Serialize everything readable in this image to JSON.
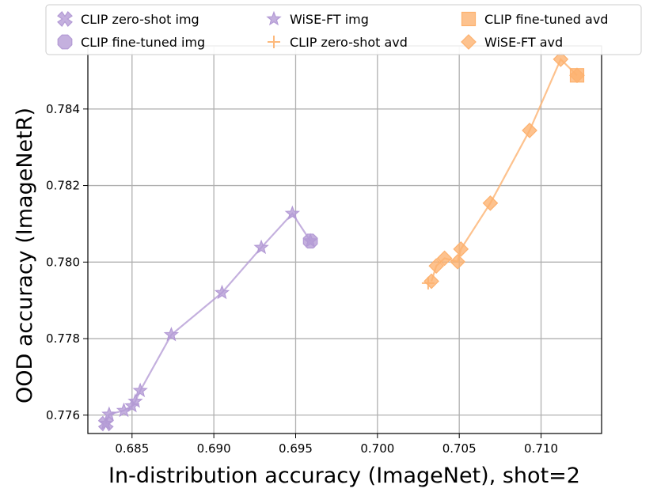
{
  "chart_data": {
    "type": "scatter",
    "title": "",
    "xlabel": "In-distribution accuracy (ImageNet), shot=2",
    "ylabel": "OOD accuracy (ImageNetR)",
    "xlim": [
      0.6823,
      0.7137
    ],
    "ylim": [
      0.77552,
      0.78565
    ],
    "xticks": [
      0.685,
      0.69,
      0.695,
      0.7,
      0.705,
      0.71
    ],
    "xtick_labels": [
      "0.685",
      "0.690",
      "0.695",
      "0.700",
      "0.705",
      "0.710"
    ],
    "yticks": [
      0.776,
      0.778,
      0.78,
      0.782,
      0.784
    ],
    "ytick_labels": [
      "0.776",
      "0.778",
      "0.780",
      "0.782",
      "0.784"
    ],
    "grid": true,
    "legend_position": "top",
    "colors": {
      "img": "#b39ad5",
      "avd": "#fdb16e"
    },
    "series": [
      {
        "name": "CLIP zero-shot img",
        "marker": "x-cross",
        "color": "#b39ad5",
        "line": false,
        "points": [
          [
            0.6834,
            0.77578
          ]
        ]
      },
      {
        "name": "CLIP fine-tuned img",
        "marker": "octagon",
        "color": "#b39ad5",
        "line": false,
        "points": [
          [
            0.6959,
            0.78055
          ]
        ]
      },
      {
        "name": "WiSE-FT img",
        "marker": "star",
        "color": "#b39ad5",
        "line": true,
        "points": [
          [
            0.6834,
            0.77578
          ],
          [
            0.6836,
            0.77602
          ],
          [
            0.6845,
            0.77612
          ],
          [
            0.685,
            0.77624
          ],
          [
            0.6852,
            0.77636
          ],
          [
            0.6855,
            0.77664
          ],
          [
            0.6874,
            0.7781
          ],
          [
            0.6905,
            0.7792
          ],
          [
            0.6929,
            0.78038
          ],
          [
            0.6948,
            0.78127
          ],
          [
            0.6959,
            0.78055
          ]
        ]
      },
      {
        "name": "CLIP zero-shot avd",
        "marker": "plus",
        "color": "#fdb16e",
        "line": false,
        "points": [
          [
            0.7031,
            0.77945
          ]
        ]
      },
      {
        "name": "CLIP fine-tuned avd",
        "marker": "square",
        "color": "#fdb16e",
        "line": false,
        "points": [
          [
            0.7122,
            0.78488
          ]
        ]
      },
      {
        "name": "WiSE-FT avd",
        "marker": "diamond",
        "color": "#fdb16e",
        "line": true,
        "points": [
          [
            0.7033,
            0.7795
          ],
          [
            0.7036,
            0.7799
          ],
          [
            0.7041,
            0.7801
          ],
          [
            0.7049,
            0.78001
          ],
          [
            0.7051,
            0.78034
          ],
          [
            0.7069,
            0.78154
          ],
          [
            0.7093,
            0.78344
          ],
          [
            0.7112,
            0.7853
          ],
          [
            0.7122,
            0.78488
          ]
        ]
      }
    ]
  }
}
